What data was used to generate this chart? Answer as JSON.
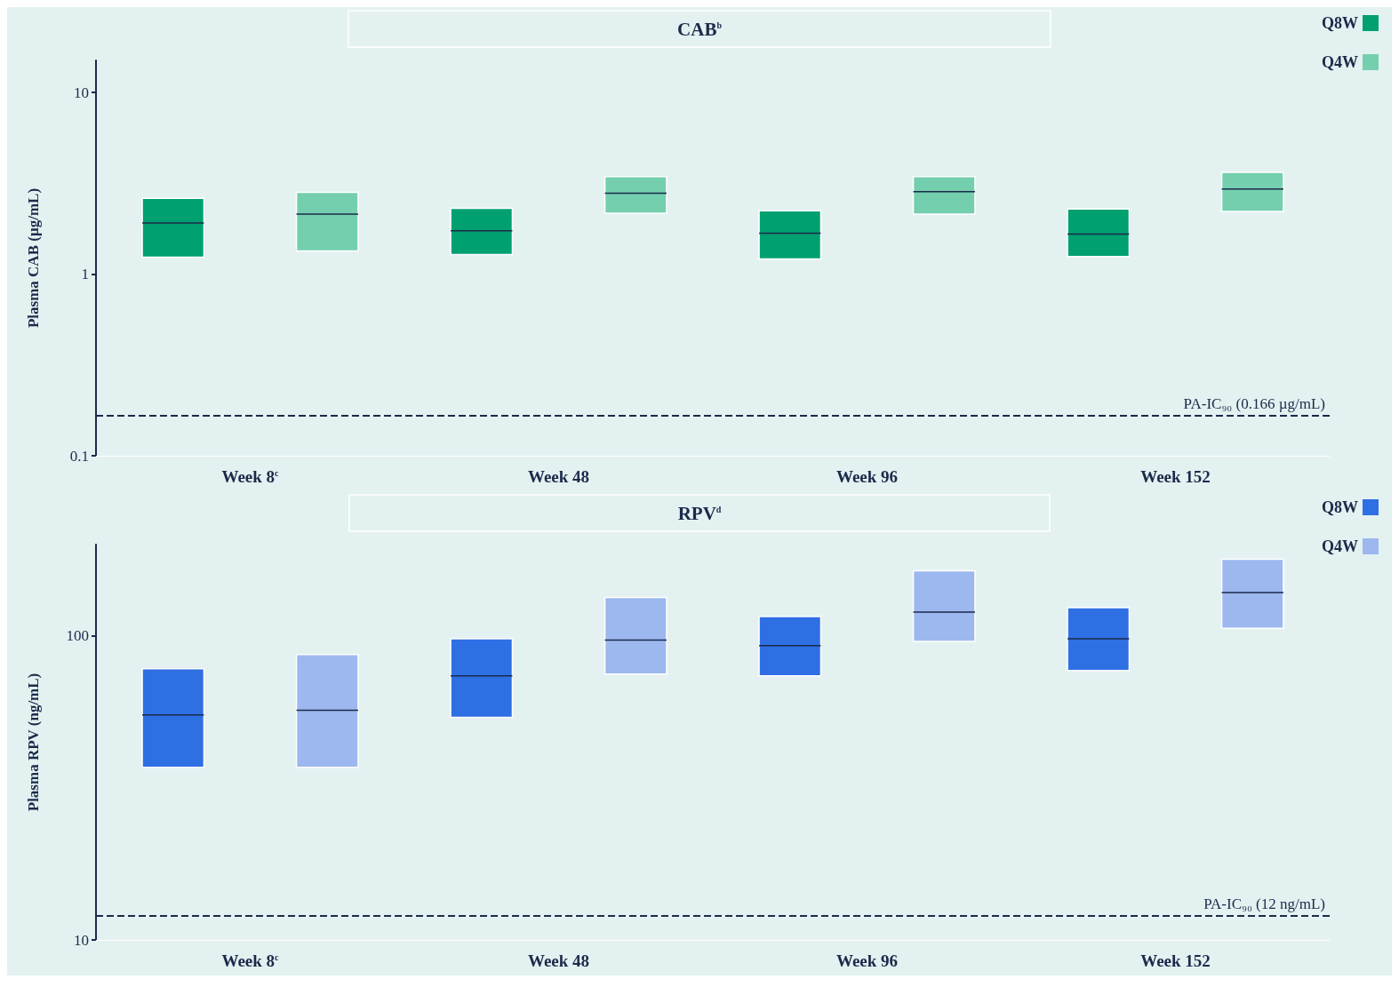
{
  "chart_data": [
    {
      "type": "box",
      "title": "CAB$^{b}$",
      "ylabel": "Plasma CAB (µg/mL)",
      "categories": [
        "Week 8$^{c}$",
        "Week 48",
        "Week 96",
        "Week 152"
      ],
      "log": true,
      "ylim": [
        0.1,
        15
      ],
      "yticks": [
        0.1,
        1,
        10
      ],
      "legend": "top right",
      "series": [
        {
          "name": "Q8W",
          "color": "#00a070",
          "boxes": [
            {
              "low": 1.24,
              "q1": 1.24,
              "median": 1.91,
              "q3": 2.61,
              "high": 2.61
            },
            {
              "low": 1.28,
              "q1": 1.28,
              "median": 1.73,
              "q3": 2.3,
              "high": 2.3
            },
            {
              "low": 1.21,
              "q1": 1.21,
              "median": 1.68,
              "q3": 2.23,
              "high": 2.23
            },
            {
              "low": 1.25,
              "q1": 1.25,
              "median": 1.66,
              "q3": 2.28,
              "high": 2.28
            }
          ]
        },
        {
          "name": "Q4W",
          "color": "#74cfae",
          "boxes": [
            {
              "low": 1.34,
              "q1": 1.34,
              "median": 2.14,
              "q3": 2.82,
              "high": 2.82
            },
            {
              "low": 2.16,
              "q1": 2.16,
              "median": 2.79,
              "q3": 3.44,
              "high": 3.44
            },
            {
              "low": 2.14,
              "q1": 2.14,
              "median": 2.84,
              "q3": 3.44,
              "high": 3.44
            },
            {
              "low": 2.21,
              "q1": 2.21,
              "median": 2.94,
              "q3": 3.63,
              "high": 3.63
            }
          ]
        }
      ],
      "ref_lines": [
        {
          "axis": "y",
          "value": 0.166,
          "label": "PA-IC₉₀ (0.166 µg/mL)",
          "line_style": "dashed",
          "color": "#1b2a4a"
        }
      ]
    },
    {
      "type": "box",
      "title": "RPV$^{d}$",
      "ylabel": "Plasma RPV (ng/mL)",
      "categories": [
        "Week 8$^{c}$",
        "Week 48",
        "Week 96",
        "Week 152"
      ],
      "log": true,
      "ylim": [
        10,
        200
      ],
      "yticks": [
        10,
        100
      ],
      "legend": "top right",
      "series": [
        {
          "name": "Q8W",
          "color": "#2f6fe4",
          "boxes": [
            {
              "low": 37,
              "q1": 37,
              "median": 55,
              "q3": 78,
              "high": 78
            },
            {
              "low": 54,
              "q1": 54,
              "median": 74,
              "q3": 98,
              "high": 98
            },
            {
              "low": 74,
              "q1": 74,
              "median": 93,
              "q3": 116,
              "high": 116
            },
            {
              "low": 77,
              "q1": 77,
              "median": 98,
              "q3": 124,
              "high": 124
            }
          ]
        },
        {
          "name": "Q4W",
          "color": "#9db8ef",
          "boxes": [
            {
              "low": 37,
              "q1": 37,
              "median": 57,
              "q3": 87,
              "high": 87
            },
            {
              "low": 75,
              "q1": 75,
              "median": 97,
              "q3": 134,
              "high": 134
            },
            {
              "low": 96,
              "q1": 96,
              "median": 120,
              "q3": 164,
              "high": 164
            },
            {
              "low": 106,
              "q1": 106,
              "median": 139,
              "q3": 179,
              "high": 179
            }
          ]
        }
      ],
      "ref_lines": [
        {
          "axis": "y",
          "value": 12,
          "label": "PA-IC₉₀ (12 ng/mL)",
          "line_style": "dashed",
          "color": "#1b2a4a"
        }
      ]
    }
  ]
}
